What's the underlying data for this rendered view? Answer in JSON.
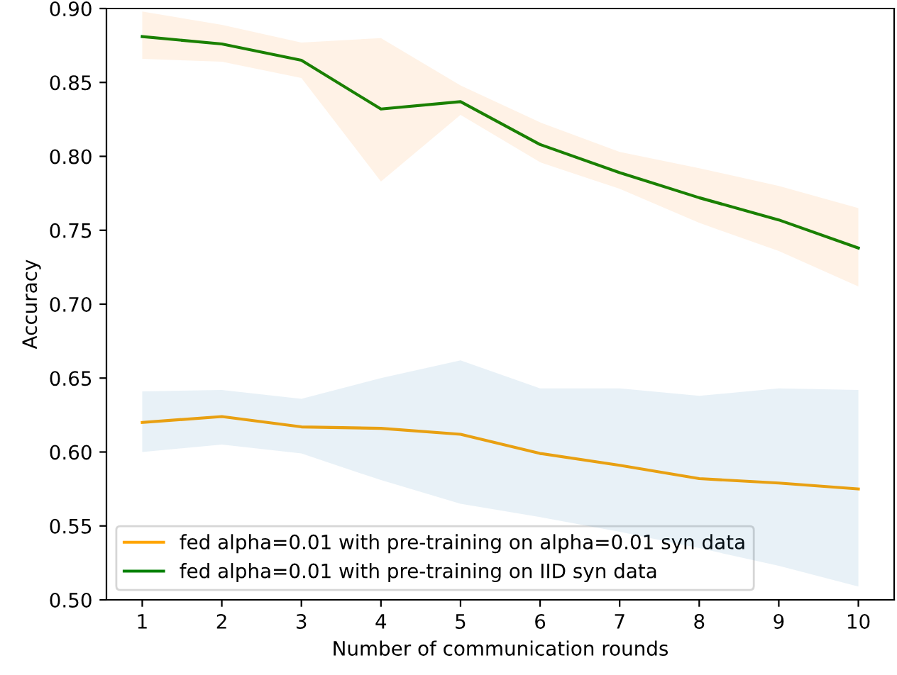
{
  "chart_data": {
    "type": "line",
    "xlabel": "Number of communication rounds",
    "ylabel": "Accuracy",
    "x": [
      1,
      2,
      3,
      4,
      5,
      6,
      7,
      8,
      9,
      10
    ],
    "xlim": [
      0.55,
      10.45
    ],
    "xticks": [
      1,
      2,
      3,
      4,
      5,
      6,
      7,
      8,
      9,
      10
    ],
    "ylim": [
      0.5,
      0.9
    ],
    "yticks": [
      {
        "value": 0.5,
        "label": "0.50"
      },
      {
        "value": 0.55,
        "label": "0.55"
      },
      {
        "value": 0.6,
        "label": "0.60"
      },
      {
        "value": 0.65,
        "label": "0.65"
      },
      {
        "value": 0.7,
        "label": "0.70"
      },
      {
        "value": 0.75,
        "label": "0.75"
      },
      {
        "value": 0.8,
        "label": "0.80"
      },
      {
        "value": 0.85,
        "label": "0.85"
      },
      {
        "value": 0.9,
        "label": "0.90"
      }
    ],
    "legend": "bottom left",
    "grid": false,
    "marker": "none",
    "line_style": "solid",
    "series": [
      {
        "name": "fed alpha=0.01 with pre-training on alpha=0.01 syn data",
        "color": "#ffa500",
        "values": [
          0.62,
          0.624,
          0.617,
          0.616,
          0.612,
          0.599,
          0.591,
          0.582,
          0.579,
          0.575
        ],
        "lower": [
          0.6,
          0.605,
          0.599,
          0.581,
          0.565,
          0.556,
          0.546,
          0.535,
          0.523,
          0.509
        ],
        "upper": [
          0.641,
          0.642,
          0.636,
          0.65,
          0.662,
          0.643,
          0.643,
          0.638,
          0.643,
          0.642
        ]
      },
      {
        "name": "fed alpha=0.01 with pre-training on IID syn data",
        "color": "#008000",
        "values": [
          0.881,
          0.876,
          0.865,
          0.832,
          0.837,
          0.808,
          0.789,
          0.772,
          0.757,
          0.738
        ],
        "lower": [
          0.866,
          0.864,
          0.853,
          0.783,
          0.828,
          0.796,
          0.778,
          0.755,
          0.736,
          0.712
        ],
        "upper": [
          0.898,
          0.889,
          0.877,
          0.88,
          0.848,
          0.823,
          0.803,
          0.792,
          0.78,
          0.765
        ]
      }
    ]
  }
}
